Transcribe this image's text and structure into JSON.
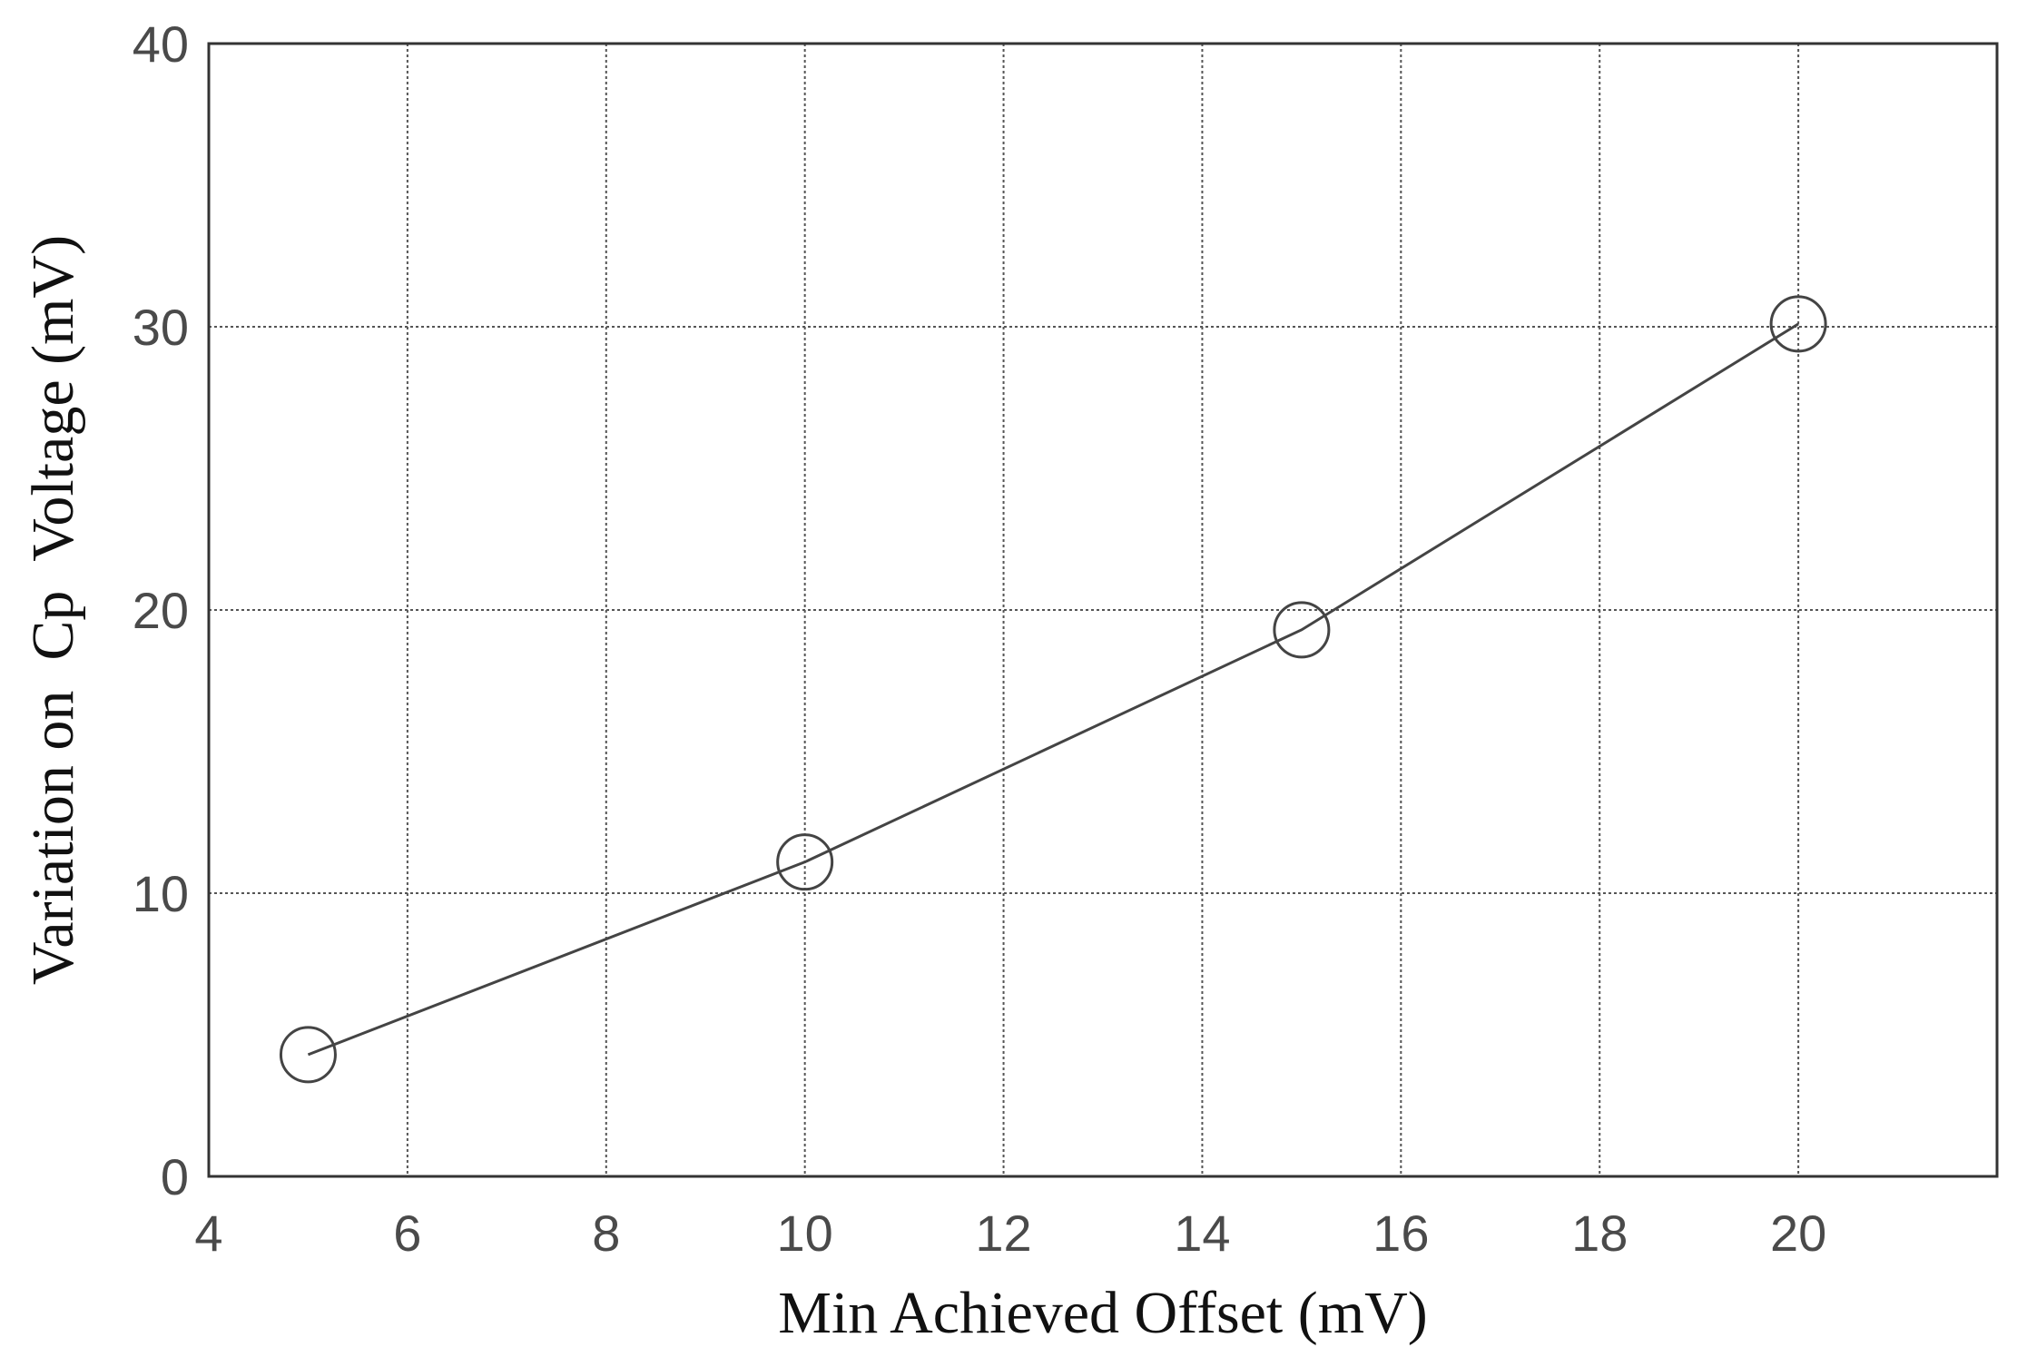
{
  "chart_data": {
    "type": "line",
    "xlabel": "Min Achieved Offset (mV)",
    "ylabel": "Variation on  Cp  Voltage (mV)",
    "xlim": [
      4,
      22
    ],
    "ylim": [
      0,
      40
    ],
    "xticks": [
      4,
      6,
      8,
      10,
      12,
      14,
      16,
      18,
      20
    ],
    "yticks": [
      0,
      10,
      20,
      30,
      40
    ],
    "grid": true,
    "marker": "open-circle",
    "colors": {
      "line": "#444444",
      "grid": "#555555",
      "axis": "#333333"
    },
    "series": [
      {
        "x": [
          5,
          10,
          15,
          20
        ],
        "y": [
          4.3,
          11.1,
          19.3,
          30.1
        ]
      }
    ]
  }
}
